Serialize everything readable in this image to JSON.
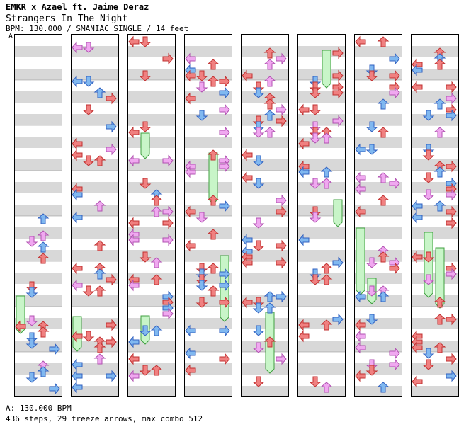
{
  "header": {
    "title": "EMKR x Azael ft. Jaime Deraz",
    "song_name": "Strangers In The Night",
    "bpm_line": "BPM: 130.000 / SMANIAC SINGLE / 14 feet",
    "section_marker": "A"
  },
  "footer": {
    "bpm": "A: 130.000 BPM",
    "stats": "436 steps, 29 freeze arrows, max combo 512"
  },
  "colors": {
    "quarter": "#f08080",
    "eighth": "#80b8f0",
    "sixteenth": "#f0a8f0",
    "freeze": "#c8f5c8",
    "freeze_edge": "#40a040",
    "shock": "#f0f040",
    "band": "#d8d8d8"
  }
}
